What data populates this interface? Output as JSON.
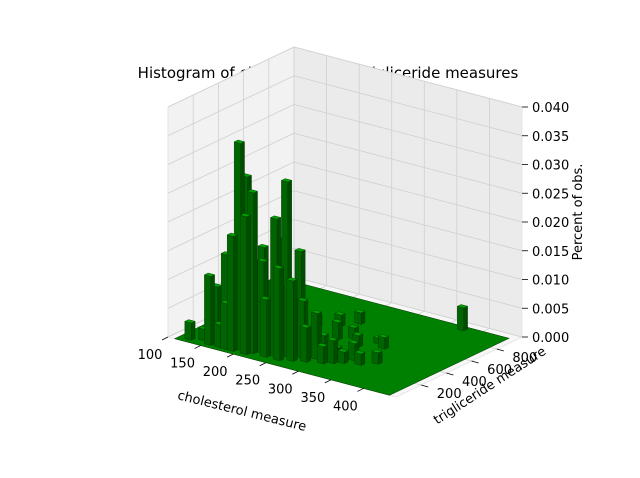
{
  "chart_data": {
    "type": "bar3d",
    "title": "Histogram of cholesterol and trigliceride measures",
    "xlabel": "cholesterol measure",
    "ylabel": "trigliceride measure",
    "zlabel": "Percent of obs.",
    "xlim": [
      100,
      450
    ],
    "ylim": [
      0,
      1000
    ],
    "zlim": [
      0,
      0.04
    ],
    "x_ticks": [
      "100",
      "150",
      "200",
      "250",
      "300",
      "350",
      "400"
    ],
    "y_ticks": [
      "200",
      "400",
      "600",
      "800"
    ],
    "z_ticks": [
      "0.000",
      "0.005",
      "0.010",
      "0.015",
      "0.020",
      "0.025",
      "0.030",
      "0.035",
      "0.040"
    ],
    "bar_color": "#008000",
    "grid": true,
    "bars": [
      {
        "x": 120,
        "y": 30,
        "z": 0.003
      },
      {
        "x": 135,
        "y": 60,
        "z": 0.002
      },
      {
        "x": 150,
        "y": 30,
        "z": 0.012
      },
      {
        "x": 155,
        "y": 60,
        "z": 0.01
      },
      {
        "x": 160,
        "y": 90,
        "z": 0.006
      },
      {
        "x": 165,
        "y": 30,
        "z": 0.004
      },
      {
        "x": 170,
        "y": 60,
        "z": 0.016
      },
      {
        "x": 175,
        "y": 30,
        "z": 0.008
      },
      {
        "x": 180,
        "y": 90,
        "z": 0.01
      },
      {
        "x": 185,
        "y": 30,
        "z": 0.02
      },
      {
        "x": 190,
        "y": 60,
        "z": 0.036
      },
      {
        "x": 195,
        "y": 90,
        "z": 0.03
      },
      {
        "x": 200,
        "y": 120,
        "z": 0.014
      },
      {
        "x": 205,
        "y": 30,
        "z": 0.024
      },
      {
        "x": 210,
        "y": 60,
        "z": 0.028
      },
      {
        "x": 215,
        "y": 120,
        "z": 0.018
      },
      {
        "x": 220,
        "y": 90,
        "z": 0.016
      },
      {
        "x": 225,
        "y": 150,
        "z": 0.012
      },
      {
        "x": 230,
        "y": 60,
        "z": 0.01
      },
      {
        "x": 235,
        "y": 120,
        "z": 0.02
      },
      {
        "x": 240,
        "y": 90,
        "z": 0.024
      },
      {
        "x": 245,
        "y": 150,
        "z": 0.03
      },
      {
        "x": 250,
        "y": 60,
        "z": 0.016
      },
      {
        "x": 255,
        "y": 120,
        "z": 0.012
      },
      {
        "x": 260,
        "y": 180,
        "z": 0.018
      },
      {
        "x": 265,
        "y": 90,
        "z": 0.014
      },
      {
        "x": 270,
        "y": 150,
        "z": 0.01
      },
      {
        "x": 280,
        "y": 120,
        "z": 0.006
      },
      {
        "x": 285,
        "y": 180,
        "z": 0.008
      },
      {
        "x": 290,
        "y": 210,
        "z": 0.004
      },
      {
        "x": 300,
        "y": 150,
        "z": 0.003
      },
      {
        "x": 305,
        "y": 240,
        "z": 0.002
      },
      {
        "x": 310,
        "y": 180,
        "z": 0.004
      },
      {
        "x": 320,
        "y": 210,
        "z": 0.002
      },
      {
        "x": 325,
        "y": 270,
        "z": 0.003
      },
      {
        "x": 340,
        "y": 240,
        "z": 0.002
      },
      {
        "x": 355,
        "y": 300,
        "z": 0.002
      },
      {
        "x": 265,
        "y": 450,
        "z": 0.003
      },
      {
        "x": 280,
        "y": 500,
        "z": 0.002
      },
      {
        "x": 300,
        "y": 430,
        "z": 0.002
      },
      {
        "x": 315,
        "y": 520,
        "z": 0.001
      },
      {
        "x": 330,
        "y": 480,
        "z": 0.002
      },
      {
        "x": 220,
        "y": 520,
        "z": 0.002
      },
      {
        "x": 240,
        "y": 600,
        "z": 0.002
      },
      {
        "x": 255,
        "y": 680,
        "z": 0.002
      },
      {
        "x": 370,
        "y": 900,
        "z": 0.004
      }
    ]
  }
}
